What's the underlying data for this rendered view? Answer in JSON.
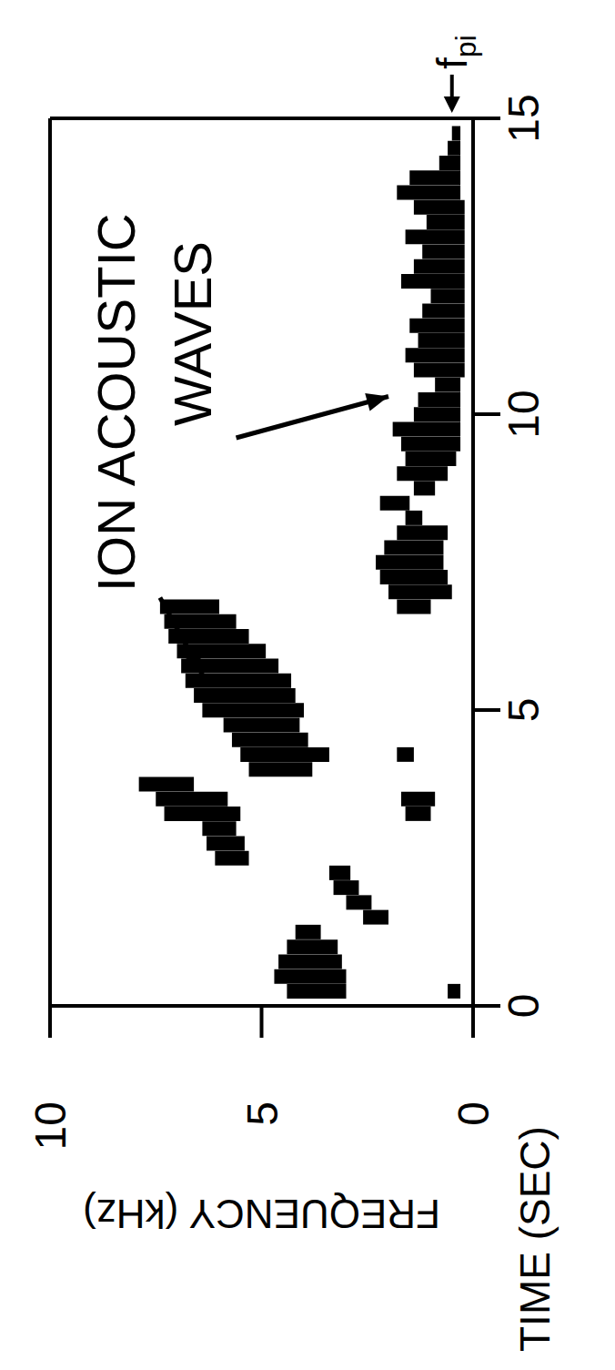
{
  "chart_data": {
    "type": "spectrogram",
    "xlabel": "TIME (SEC)",
    "ylabel": "FREQUENCY (kHz)",
    "xlim": [
      0,
      15
    ],
    "xticks": [
      0,
      5,
      10,
      15
    ],
    "ylim": [
      0,
      10
    ],
    "yticks": [
      0,
      5,
      10
    ],
    "grid": false,
    "color": "#000000",
    "x": [
      0.25,
      0.5,
      0.75,
      1.0,
      1.25,
      1.5,
      1.75,
      2.0,
      2.25,
      2.5,
      2.75,
      3.0,
      3.25,
      3.5,
      3.75,
      4.0,
      4.25,
      4.5,
      4.75,
      5.0,
      5.25,
      5.5,
      5.75,
      6.0,
      6.25,
      6.5,
      6.75,
      7.0,
      7.25,
      7.5,
      7.75,
      8.0,
      8.25,
      8.5,
      8.75,
      9.0,
      9.25,
      9.5,
      9.75,
      10.0,
      10.25,
      10.5,
      10.75,
      11.0,
      11.25,
      11.5,
      11.75,
      12.0,
      12.25,
      12.5,
      12.75,
      13.0,
      13.25,
      13.5,
      13.75,
      14.0,
      14.25,
      14.5,
      14.75
    ],
    "values": [
      [
        [
          3.0,
          4.4
        ],
        [
          0.3,
          0.6
        ]
      ],
      [
        [
          3.0,
          4.7
        ]
      ],
      [
        [
          3.1,
          4.6
        ]
      ],
      [
        [
          3.2,
          4.4
        ]
      ],
      [
        [
          3.6,
          4.2
        ]
      ],
      [
        [
          2.0,
          2.6
        ]
      ],
      [
        [
          2.4,
          3.0
        ]
      ],
      [
        [
          2.7,
          3.3
        ]
      ],
      [
        [
          2.9,
          3.4
        ]
      ],
      [
        [
          5.3,
          6.1
        ]
      ],
      [
        [
          5.4,
          6.3
        ]
      ],
      [
        [
          5.6,
          6.4
        ]
      ],
      [
        [
          5.5,
          7.3
        ],
        [
          1.0,
          1.6
        ]
      ],
      [
        [
          5.8,
          7.5
        ],
        [
          0.9,
          1.7
        ]
      ],
      [
        [
          6.6,
          7.9
        ]
      ],
      [
        [
          3.8,
          5.3
        ]
      ],
      [
        [
          3.4,
          5.5
        ],
        [
          1.4,
          1.8
        ]
      ],
      [
        [
          3.9,
          5.7
        ]
      ],
      [
        [
          4.1,
          5.9
        ]
      ],
      [
        [
          4.0,
          6.4
        ]
      ],
      [
        [
          4.2,
          6.6
        ]
      ],
      [
        [
          4.3,
          6.8
        ]
      ],
      [
        [
          4.6,
          6.9
        ]
      ],
      [
        [
          4.9,
          7.0
        ]
      ],
      [
        [
          5.3,
          7.2
        ]
      ],
      [
        [
          5.6,
          7.3
        ]
      ],
      [
        [
          6.0,
          7.4
        ],
        [
          1.0,
          1.8
        ]
      ],
      [
        [
          0.5,
          2.0
        ]
      ],
      [
        [
          0.6,
          2.2
        ]
      ],
      [
        [
          0.7,
          2.3
        ]
      ],
      [
        [
          0.7,
          2.1
        ]
      ],
      [
        [
          0.6,
          1.8
        ]
      ],
      [
        [
          1.2,
          1.6
        ]
      ],
      [
        [
          1.5,
          2.2
        ]
      ],
      [
        [
          0.9,
          1.4
        ]
      ],
      [
        [
          0.6,
          1.8
        ]
      ],
      [
        [
          0.4,
          1.6
        ]
      ],
      [
        [
          0.3,
          1.7
        ]
      ],
      [
        [
          0.3,
          1.9
        ]
      ],
      [
        [
          0.3,
          1.4
        ]
      ],
      [
        [
          0.3,
          1.3
        ]
      ],
      [
        [
          0.3,
          0.9
        ]
      ],
      [
        [
          0.2,
          1.4
        ]
      ],
      [
        [
          0.2,
          1.6
        ]
      ],
      [
        [
          0.2,
          1.3
        ]
      ],
      [
        [
          0.2,
          1.5
        ]
      ],
      [
        [
          0.2,
          1.2
        ]
      ],
      [
        [
          0.2,
          1.0
        ]
      ],
      [
        [
          0.2,
          1.7
        ]
      ],
      [
        [
          0.2,
          1.4
        ]
      ],
      [
        [
          0.2,
          1.2
        ]
      ],
      [
        [
          0.2,
          1.6
        ]
      ],
      [
        [
          0.2,
          1.1
        ]
      ],
      [
        [
          0.2,
          1.4
        ]
      ],
      [
        [
          0.3,
          1.8
        ]
      ],
      [
        [
          0.3,
          1.5
        ]
      ],
      [
        [
          0.3,
          0.8
        ]
      ],
      [
        [
          0.3,
          0.6
        ]
      ],
      [
        [
          0.3,
          0.5
        ]
      ]
    ],
    "annotations": [
      {
        "text": "ION ACOUSTIC",
        "x": 7.0,
        "y": 8.0
      },
      {
        "text": "WAVES",
        "x": 9.8,
        "y": 6.2
      },
      {
        "text": "f",
        "subscript": "pi",
        "x": 15,
        "y": 0.5
      }
    ],
    "arrows": [
      {
        "from": [
          6.9,
          7.4
        ],
        "to": [
          5.6,
          6.4
        ]
      },
      {
        "from": [
          9.6,
          5.6
        ],
        "to": [
          10.3,
          2.0
        ]
      }
    ]
  }
}
